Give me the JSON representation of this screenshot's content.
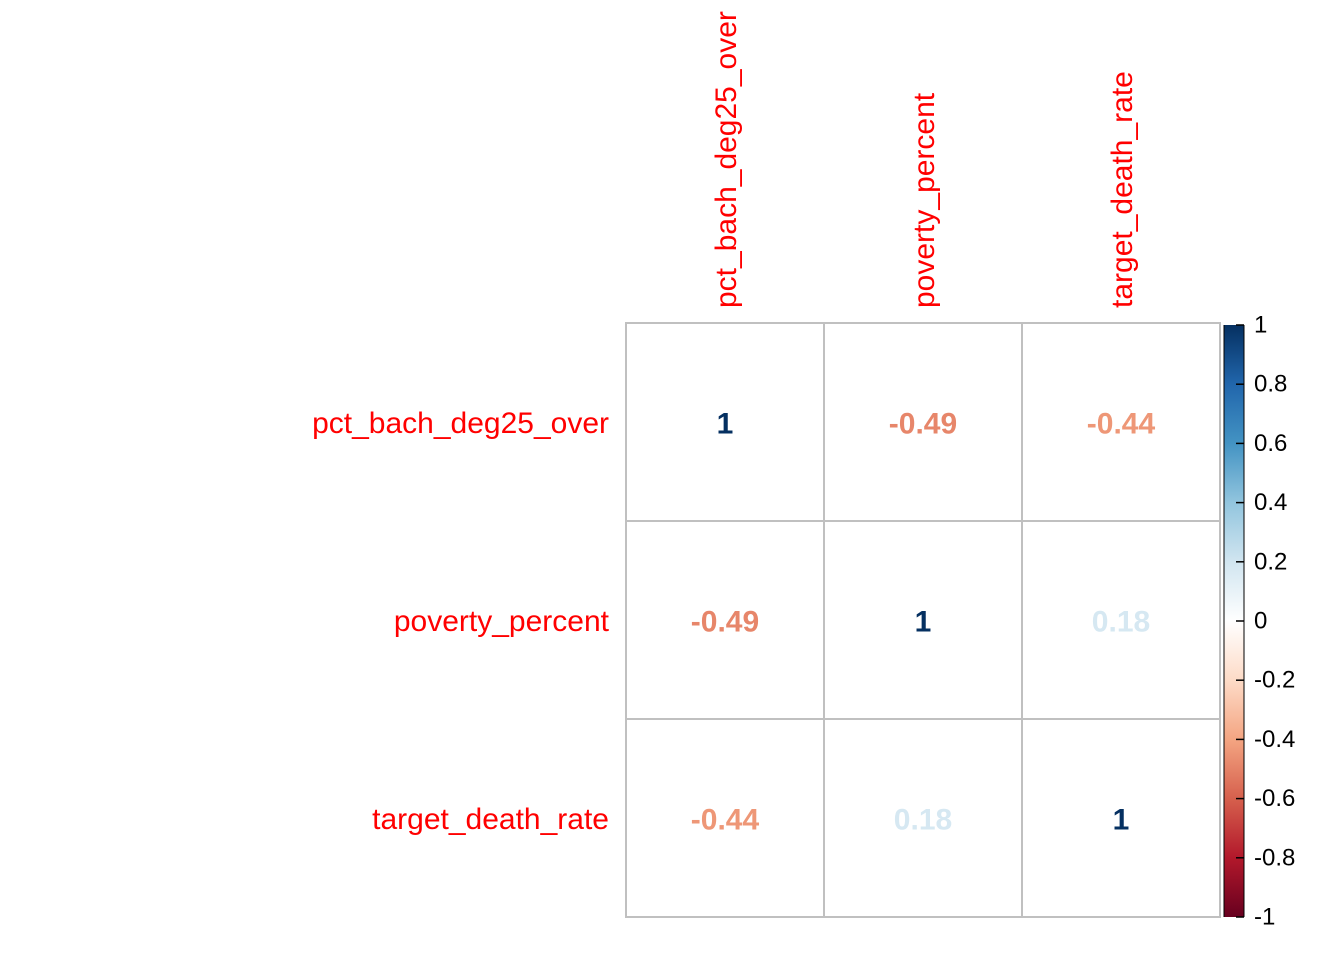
{
  "chart_data": {
    "type": "heatmap",
    "variables": [
      "pct_bach_deg25_over",
      "poverty_percent",
      "target_death_rate"
    ],
    "matrix": [
      [
        1,
        -0.49,
        -0.44
      ],
      [
        -0.49,
        1,
        0.18
      ],
      [
        -0.44,
        0.18,
        1
      ]
    ],
    "cell_labels": [
      [
        "1",
        "-0.49",
        "-0.44"
      ],
      [
        "-0.49",
        "1",
        "0.18"
      ],
      [
        "-0.44",
        "0.18",
        "1"
      ]
    ],
    "colorbar": {
      "range": [
        -1,
        1
      ],
      "ticks": [
        1,
        0.8,
        0.6,
        0.4,
        0.2,
        0,
        -0.2,
        -0.4,
        -0.6,
        -0.8,
        -1
      ],
      "tick_labels": [
        "1",
        "0.8",
        "0.6",
        "0.4",
        "0.2",
        "0",
        "-0.2",
        "-0.4",
        "-0.6",
        "-0.8",
        "-1"
      ],
      "colors": [
        "#67001F",
        "#B2182B",
        "#D6604D",
        "#F4A582",
        "#FDDBC7",
        "#FFFFFF",
        "#D1E5F0",
        "#92C5DE",
        "#4393C3",
        "#2166AC",
        "#053061"
      ]
    },
    "label_color": "#FF0000",
    "grid_color": "#C0C0C0"
  }
}
